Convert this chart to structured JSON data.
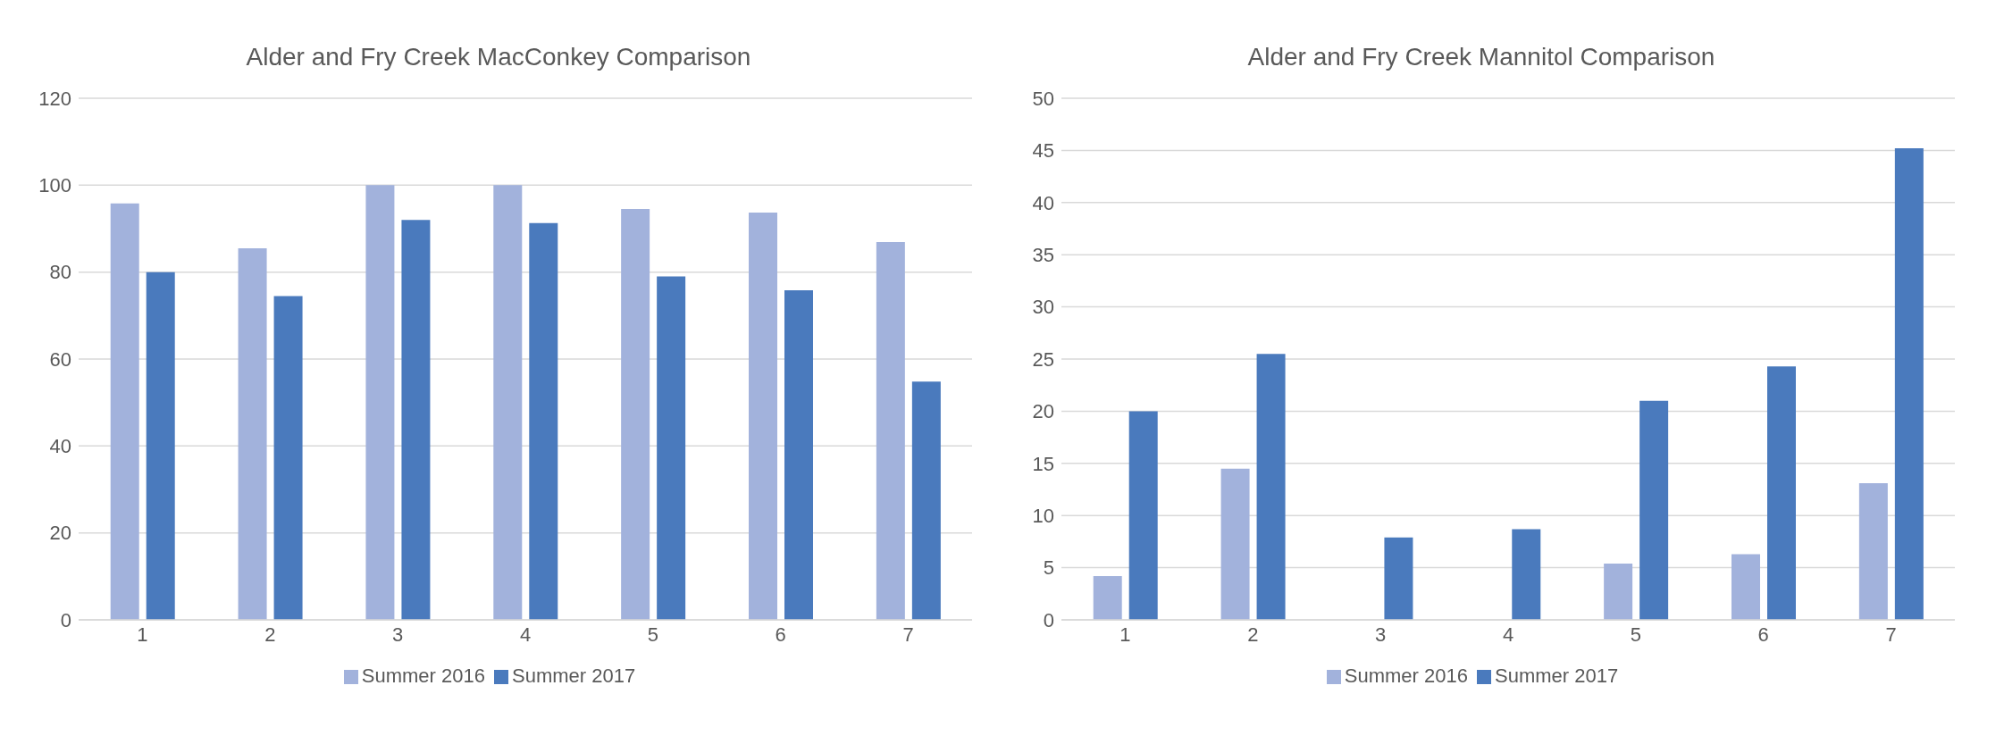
{
  "chart_data": [
    {
      "type": "bar",
      "title": "Alder and Fry Creek MacConkey Comparison",
      "categories": [
        "1",
        "2",
        "3",
        "4",
        "5",
        "6",
        "7"
      ],
      "series": [
        {
          "name": "Summer 2016",
          "color": "#a2b2dc",
          "values": [
            95.8,
            85.5,
            100,
            100,
            94.5,
            93.7,
            86.9
          ]
        },
        {
          "name": "Summer 2017",
          "color": "#4a7abd",
          "values": [
            80,
            74.5,
            92,
            91.3,
            79,
            75.8,
            54.8
          ]
        }
      ],
      "ylim": [
        0,
        120
      ],
      "yticks": [
        0,
        20,
        40,
        60,
        80,
        100,
        120
      ],
      "grid": "y",
      "legend": "bottom"
    },
    {
      "type": "bar",
      "title": "Alder and Fry Creek Mannitol Comparison",
      "categories": [
        "1",
        "2",
        "3",
        "4",
        "5",
        "6",
        "7"
      ],
      "series": [
        {
          "name": "Summer 2016",
          "color": "#a2b2dc",
          "values": [
            4.2,
            14.5,
            0,
            0,
            5.4,
            6.3,
            13.1
          ]
        },
        {
          "name": "Summer 2017",
          "color": "#4a7abd",
          "values": [
            20,
            25.5,
            7.9,
            8.7,
            21,
            24.3,
            45.2
          ]
        }
      ],
      "ylim": [
        0,
        50
      ],
      "yticks": [
        0,
        5,
        10,
        15,
        20,
        25,
        30,
        35,
        40,
        45,
        50
      ],
      "grid": "y",
      "legend": "bottom"
    }
  ]
}
